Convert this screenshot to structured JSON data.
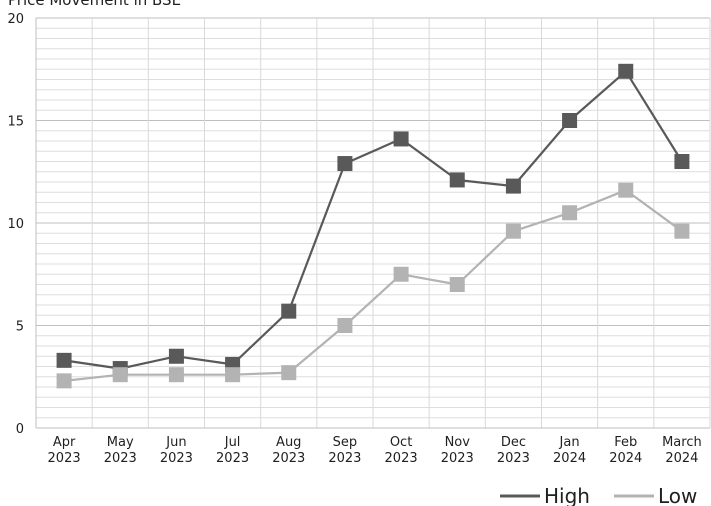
{
  "chart_data": {
    "type": "line",
    "title": "Price Movement in BSE",
    "xlabel": "",
    "ylabel": "",
    "categories": [
      [
        "Apr",
        "2023"
      ],
      [
        "May",
        "2023"
      ],
      [
        "Jun",
        "2023"
      ],
      [
        "Jul",
        "2023"
      ],
      [
        "Aug",
        "2023"
      ],
      [
        "Sep",
        "2023"
      ],
      [
        "Oct",
        "2023"
      ],
      [
        "Nov",
        "2023"
      ],
      [
        "Dec",
        "2023"
      ],
      [
        "Jan",
        "2024"
      ],
      [
        "Feb",
        "2024"
      ],
      [
        "March",
        "2024"
      ]
    ],
    "ylim": [
      0,
      20
    ],
    "yticks": [
      0,
      5,
      10,
      15,
      20
    ],
    "grid": true,
    "legend": "bottom-right",
    "series": [
      {
        "name": "High",
        "color": "#595959",
        "values": [
          3.3,
          2.9,
          3.5,
          3.1,
          5.7,
          12.9,
          14.1,
          12.1,
          11.8,
          15.0,
          17.4,
          13.0
        ]
      },
      {
        "name": "Low",
        "color": "#b3b3b3",
        "values": [
          2.3,
          2.6,
          2.6,
          2.6,
          2.7,
          5.0,
          7.5,
          7.0,
          9.6,
          10.5,
          11.6,
          9.6
        ]
      }
    ]
  }
}
